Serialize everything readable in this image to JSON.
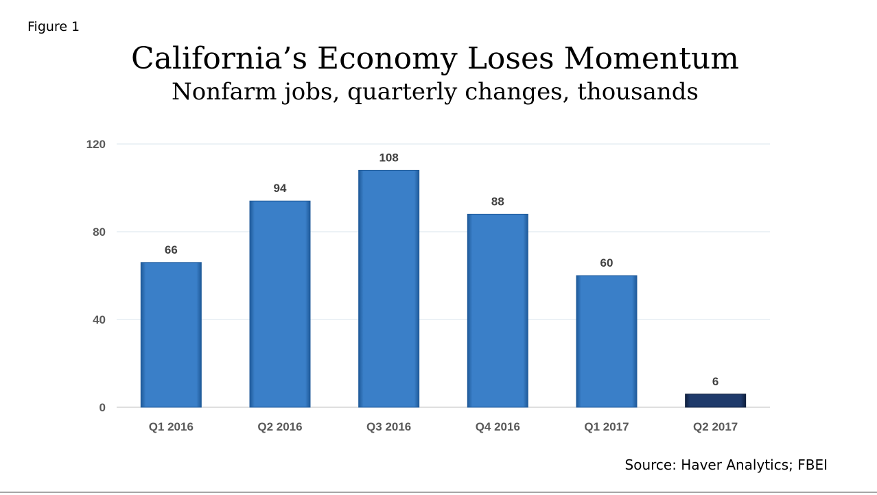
{
  "figure_label": "Figure 1",
  "source": "Source: Haver Analytics; FBEI",
  "colors": {
    "bar": "#3a7fc8",
    "bar_highlight": "#1f3a6b",
    "grid": "#d9e4ec",
    "axis_text": "#595959",
    "label_text": "#404040"
  },
  "chart_data": {
    "type": "bar",
    "title": "California’s Economy Loses Momentum",
    "subtitle": "Nonfarm jobs, quarterly changes, thousands",
    "categories": [
      "Q1 2016",
      "Q2 2016",
      "Q3 2016",
      "Q4 2016",
      "Q1 2017",
      "Q2 2017"
    ],
    "values": [
      66,
      94,
      108,
      88,
      60,
      6
    ],
    "data_labels": [
      "66",
      "94",
      "108",
      "88",
      "60",
      "6"
    ],
    "highlight_index": 5,
    "ylim": [
      0,
      120
    ],
    "yticks": [
      0,
      40,
      80,
      120
    ],
    "grid": true,
    "legend": "none"
  }
}
